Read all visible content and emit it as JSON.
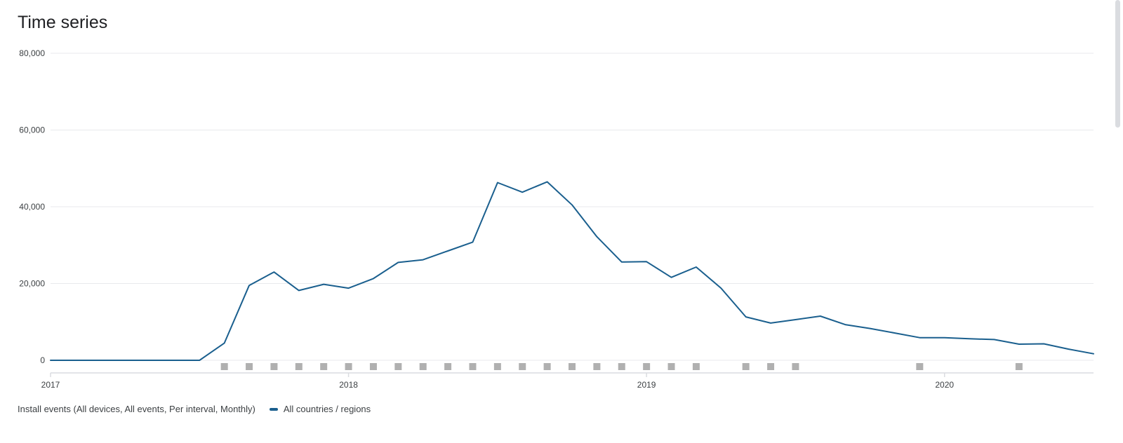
{
  "title": "Time series",
  "legend": {
    "description": "Install events (All devices, All events, Per interval, Monthly)",
    "series_label": "All countries / regions"
  },
  "colors": {
    "line": "#1a5f8e",
    "grid": "#e8eaed",
    "marker": "#b0b0b0",
    "axis": "#dadce0"
  },
  "chart_data": {
    "type": "line",
    "x_unit": "month",
    "xlim": [
      "2017-01",
      "2020-07"
    ],
    "x_ticks": [
      "2017",
      "2018",
      "2019",
      "2020"
    ],
    "ylim": [
      0,
      80000
    ],
    "y_ticks": [
      0,
      20000,
      40000,
      60000,
      80000
    ],
    "y_tick_labels": [
      "0",
      "20,000",
      "40,000",
      "60,000",
      "80,000"
    ],
    "grid": true,
    "legend_position": "bottom-left",
    "series": [
      {
        "name": "All countries / regions",
        "x": [
          "2017-01",
          "2017-02",
          "2017-03",
          "2017-04",
          "2017-05",
          "2017-06",
          "2017-07",
          "2017-08",
          "2017-09",
          "2017-10",
          "2017-11",
          "2017-12",
          "2018-01",
          "2018-02",
          "2018-03",
          "2018-04",
          "2018-05",
          "2018-06",
          "2018-07",
          "2018-08",
          "2018-09",
          "2018-10",
          "2018-11",
          "2018-12",
          "2019-01",
          "2019-02",
          "2019-03",
          "2019-04",
          "2019-05",
          "2019-06",
          "2019-07",
          "2019-08",
          "2019-09",
          "2019-10",
          "2019-11",
          "2019-12",
          "2020-01",
          "2020-02",
          "2020-03",
          "2020-04",
          "2020-05",
          "2020-06",
          "2020-07"
        ],
        "values": [
          0,
          0,
          0,
          0,
          0,
          0,
          0,
          4500,
          19500,
          23000,
          18200,
          19800,
          18800,
          21300,
          25500,
          26200,
          28500,
          30800,
          46300,
          43800,
          46500,
          40500,
          32200,
          25600,
          25700,
          21600,
          24300,
          18800,
          11300,
          9700,
          10600,
          11500,
          9300,
          8300,
          7100,
          5900,
          5900,
          5600,
          5400,
          4200,
          4300,
          2900,
          1700
        ]
      }
    ],
    "annotation_markers": [
      "2017-08",
      "2017-09",
      "2017-10",
      "2017-11",
      "2017-12",
      "2018-01",
      "2018-02",
      "2018-03",
      "2018-04",
      "2018-05",
      "2018-06",
      "2018-07",
      "2018-08",
      "2018-09",
      "2018-10",
      "2018-11",
      "2018-12",
      "2019-01",
      "2019-02",
      "2019-03",
      "2019-05",
      "2019-06",
      "2019-07",
      "2019-12",
      "2020-04"
    ]
  }
}
